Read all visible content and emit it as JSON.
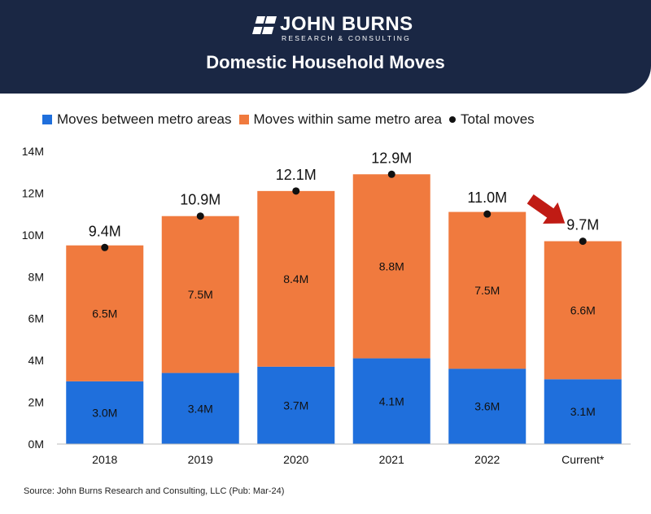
{
  "header": {
    "logo_name": "JOHN BURNS",
    "logo_sub": "RESEARCH & CONSULTING",
    "title": "Domestic Household Moves",
    "bg_color": "#1a2744"
  },
  "legend": {
    "between": "Moves between metro areas",
    "within": "Moves within same metro area",
    "total": "Total moves"
  },
  "chart_data": {
    "type": "bar",
    "stacked": true,
    "title": "Domestic Household Moves",
    "categories": [
      "2018",
      "2019",
      "2020",
      "2021",
      "2022",
      "Current*"
    ],
    "series": [
      {
        "name": "Moves between metro areas",
        "color": "#1f6fdc",
        "values": [
          3.0,
          3.4,
          3.7,
          4.1,
          3.6,
          3.1
        ],
        "labels": [
          "3.0M",
          "3.4M",
          "3.7M",
          "4.1M",
          "3.6M",
          "3.1M"
        ]
      },
      {
        "name": "Moves within same metro area",
        "color": "#f07a3e",
        "values": [
          6.5,
          7.5,
          8.4,
          8.8,
          7.5,
          6.6
        ],
        "labels": [
          "6.5M",
          "7.5M",
          "8.4M",
          "8.8M",
          "7.5M",
          "6.6M"
        ]
      }
    ],
    "totals": {
      "name": "Total moves",
      "values": [
        9.4,
        10.9,
        12.1,
        12.9,
        11.0,
        9.7
      ],
      "labels": [
        "9.4M",
        "10.9M",
        "12.1M",
        "12.9M",
        "11.0M",
        "9.7M"
      ]
    },
    "ylim": [
      0,
      14
    ],
    "yticks": [
      {
        "value": 0,
        "label": "0M"
      },
      {
        "value": 2,
        "label": "2M"
      },
      {
        "value": 4,
        "label": "4M"
      },
      {
        "value": 6,
        "label": "6M"
      },
      {
        "value": 8,
        "label": "8M"
      },
      {
        "value": 10,
        "label": "10M"
      },
      {
        "value": 12,
        "label": "12M"
      },
      {
        "value": 14,
        "label": "14M"
      }
    ],
    "grid": false,
    "annotation": {
      "type": "arrow",
      "color": "#c01b14",
      "points_to": "Current*"
    },
    "xlabel": "",
    "ylabel": ""
  },
  "source": "Source: John Burns Research and Consulting, LLC (Pub: Mar-24)"
}
